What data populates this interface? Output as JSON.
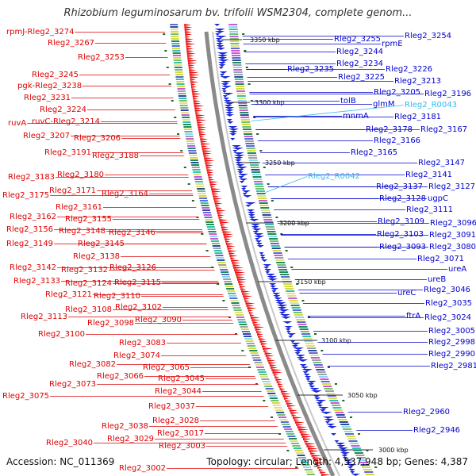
{
  "title": "Rhizobium leguminosarum bv. trifolii WSM2304, complete genom...",
  "accession_label": "Accession:",
  "accession": "NC_011369",
  "topology_text": "Topology: circular; Length: 4,537,948 bp; Genes: 4,387",
  "colors": {
    "left_labels": "#dd0000",
    "right_labels": "#0000cc",
    "rna_labels": "#33bbee",
    "backbone": "#888888",
    "tick": "#226622"
  },
  "scale_labels": [
    "3350 kbp",
    "3300 kbp",
    "3250 kbp",
    "3200 kbp",
    "3150 kbp",
    "3100 kbp",
    "3050 kbp",
    "3000 kbp"
  ],
  "left_labels": [
    "rpmJ-Rleg2_3274",
    "Rleg2_3267",
    "Rleg2_3253",
    "Rleg2_3245",
    "pgk-Rleg2_3238",
    "Rleg2_3231",
    "Rleg2_3224",
    "ruvA",
    "ruvC-Rleg2_3214",
    "Rleg2_3207",
    "Rleg2_3206",
    "Rleg2_3191",
    "Rleg2_3188",
    "Rleg2_3183",
    "Rleg2_3180",
    "Rleg2_3175",
    "Rleg2_3171",
    "Rleg2_3164",
    "Rleg2_3161",
    "Rleg2_3162",
    "Rleg2_3155",
    "Rleg2_3156",
    "Rleg2_3148",
    "Rleg2_3146",
    "Rleg2_3149",
    "Rleg2_3145",
    "Rleg2_3138",
    "Rleg2_3142",
    "Rleg2_3132",
    "Rleg2_3126",
    "Rleg2_3133",
    "Rleg2_3124",
    "Rleg2_3115",
    "Rleg2_3121",
    "Rleg2_3110",
    "Rleg2_3108",
    "Rleg2_3102",
    "Rleg2_3113",
    "Rleg2_3098",
    "Rleg2_3090",
    "Rleg2_3100",
    "Rleg2_3083",
    "Rleg2_3074",
    "Rleg2_3082",
    "Rleg2_3065",
    "Rleg2_3066",
    "Rleg2_3073",
    "Rleg2_3045",
    "Rleg2_3044",
    "Rleg2_3075",
    "Rleg2_3037",
    "Rleg2_3028",
    "Rleg2_3038",
    "Rleg2_3017",
    "Rleg2_3029",
    "Rleg2_3040",
    "Rleg2_3003",
    "Rleg2_3002"
  ],
  "right_labels": [
    "Rleg2_3254",
    "Rleg2_3255",
    "rpmE",
    "Rleg2_3244",
    "Rleg2_3234",
    "Rleg2_3235",
    "Rleg2_3226",
    "Rleg2_3225",
    "Rleg2_3213",
    "Rleg2_3205",
    "Rleg2_3196",
    "tolB",
    "glmM",
    "mnmA",
    "Rleg2_3181",
    "Rleg2_3178",
    "Rleg2_3167",
    "Rleg2_3166",
    "Rleg2_3165",
    "Rleg2_3147",
    "Rleg2_3141",
    "Rleg2_3137",
    "Rleg2_3127",
    "Rleg2_3128",
    "ugpC",
    "Rleg2_3111",
    "Rleg2_3109",
    "Rleg2_3096",
    "Rleg2_3103",
    "Rleg2_3091",
    "Rleg2_3093",
    "Rleg2_3080",
    "Rleg2_3071",
    "ureA",
    "ureB",
    "ureC",
    "Rleg2_3046",
    "Rleg2_3035",
    "ftrA",
    "Rleg2_3024",
    "Rleg2_3005",
    "Rleg2_2998",
    "Rleg2_2990",
    "Rleg2_2981",
    "Rleg2_2960",
    "Rleg2_2946"
  ],
  "rna_labels": [
    "Rleg2_R0043",
    "Rleg2_R0042"
  ]
}
